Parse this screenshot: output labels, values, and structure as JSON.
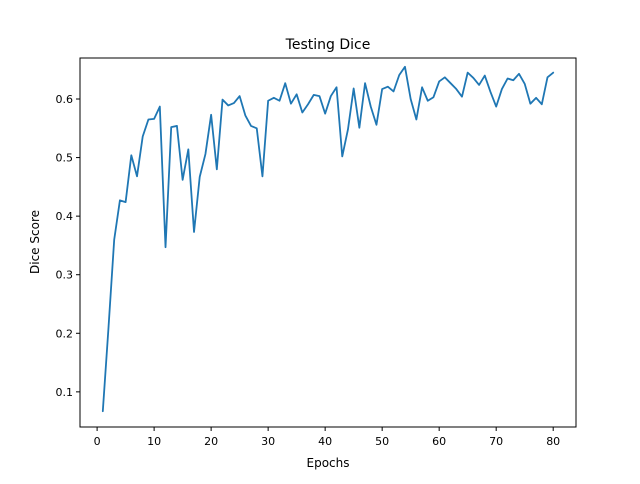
{
  "chart_data": {
    "type": "line",
    "title": "Testing Dice",
    "xlabel": "Epochs",
    "ylabel": "Dice Score",
    "xlim": [
      -3,
      84
    ],
    "ylim": [
      0.04,
      0.67
    ],
    "xticks": [
      0,
      10,
      20,
      30,
      40,
      50,
      60,
      70,
      80
    ],
    "yticks": [
      0.1,
      0.2,
      0.3,
      0.4,
      0.5,
      0.6
    ],
    "ytick_labels": [
      "0.1",
      "0.2",
      "0.3",
      "0.4",
      "0.5",
      "0.6"
    ],
    "grid": false,
    "line_color": "#1f77b4",
    "series": [
      {
        "x": [
          1,
          2,
          3,
          4,
          5,
          6,
          7,
          8,
          9,
          10,
          11,
          12,
          13,
          14,
          15,
          16,
          17,
          18,
          19,
          20,
          21,
          22,
          23,
          24,
          25,
          26,
          27,
          28,
          29,
          30,
          31,
          32,
          33,
          34,
          35,
          36,
          37,
          38,
          39,
          40,
          41,
          42,
          43,
          44,
          45,
          46,
          47,
          48,
          49,
          50,
          51,
          52,
          53,
          54,
          55,
          56,
          57,
          58,
          59,
          60,
          61,
          62,
          63,
          64,
          65,
          66,
          67,
          68,
          69,
          70,
          71,
          72,
          73,
          74,
          75,
          76,
          77,
          78,
          79,
          80
        ],
        "values": [
          0.067,
          0.21,
          0.36,
          0.427,
          0.424,
          0.504,
          0.468,
          0.536,
          0.565,
          0.566,
          0.587,
          0.347,
          0.552,
          0.554,
          0.462,
          0.514,
          0.373,
          0.467,
          0.506,
          0.573,
          0.48,
          0.599,
          0.589,
          0.593,
          0.605,
          0.572,
          0.554,
          0.55,
          0.468,
          0.597,
          0.602,
          0.597,
          0.627,
          0.592,
          0.608,
          0.577,
          0.591,
          0.607,
          0.605,
          0.575,
          0.605,
          0.62,
          0.502,
          0.548,
          0.618,
          0.551,
          0.627,
          0.587,
          0.556,
          0.617,
          0.621,
          0.613,
          0.641,
          0.655,
          0.6,
          0.565,
          0.62,
          0.597,
          0.603,
          0.63,
          0.637,
          0.627,
          0.617,
          0.604,
          0.645,
          0.636,
          0.624,
          0.64,
          0.612,
          0.587,
          0.617,
          0.635,
          0.632,
          0.643,
          0.626,
          0.592,
          0.602,
          0.591,
          0.637,
          0.645
        ]
      }
    ]
  }
}
